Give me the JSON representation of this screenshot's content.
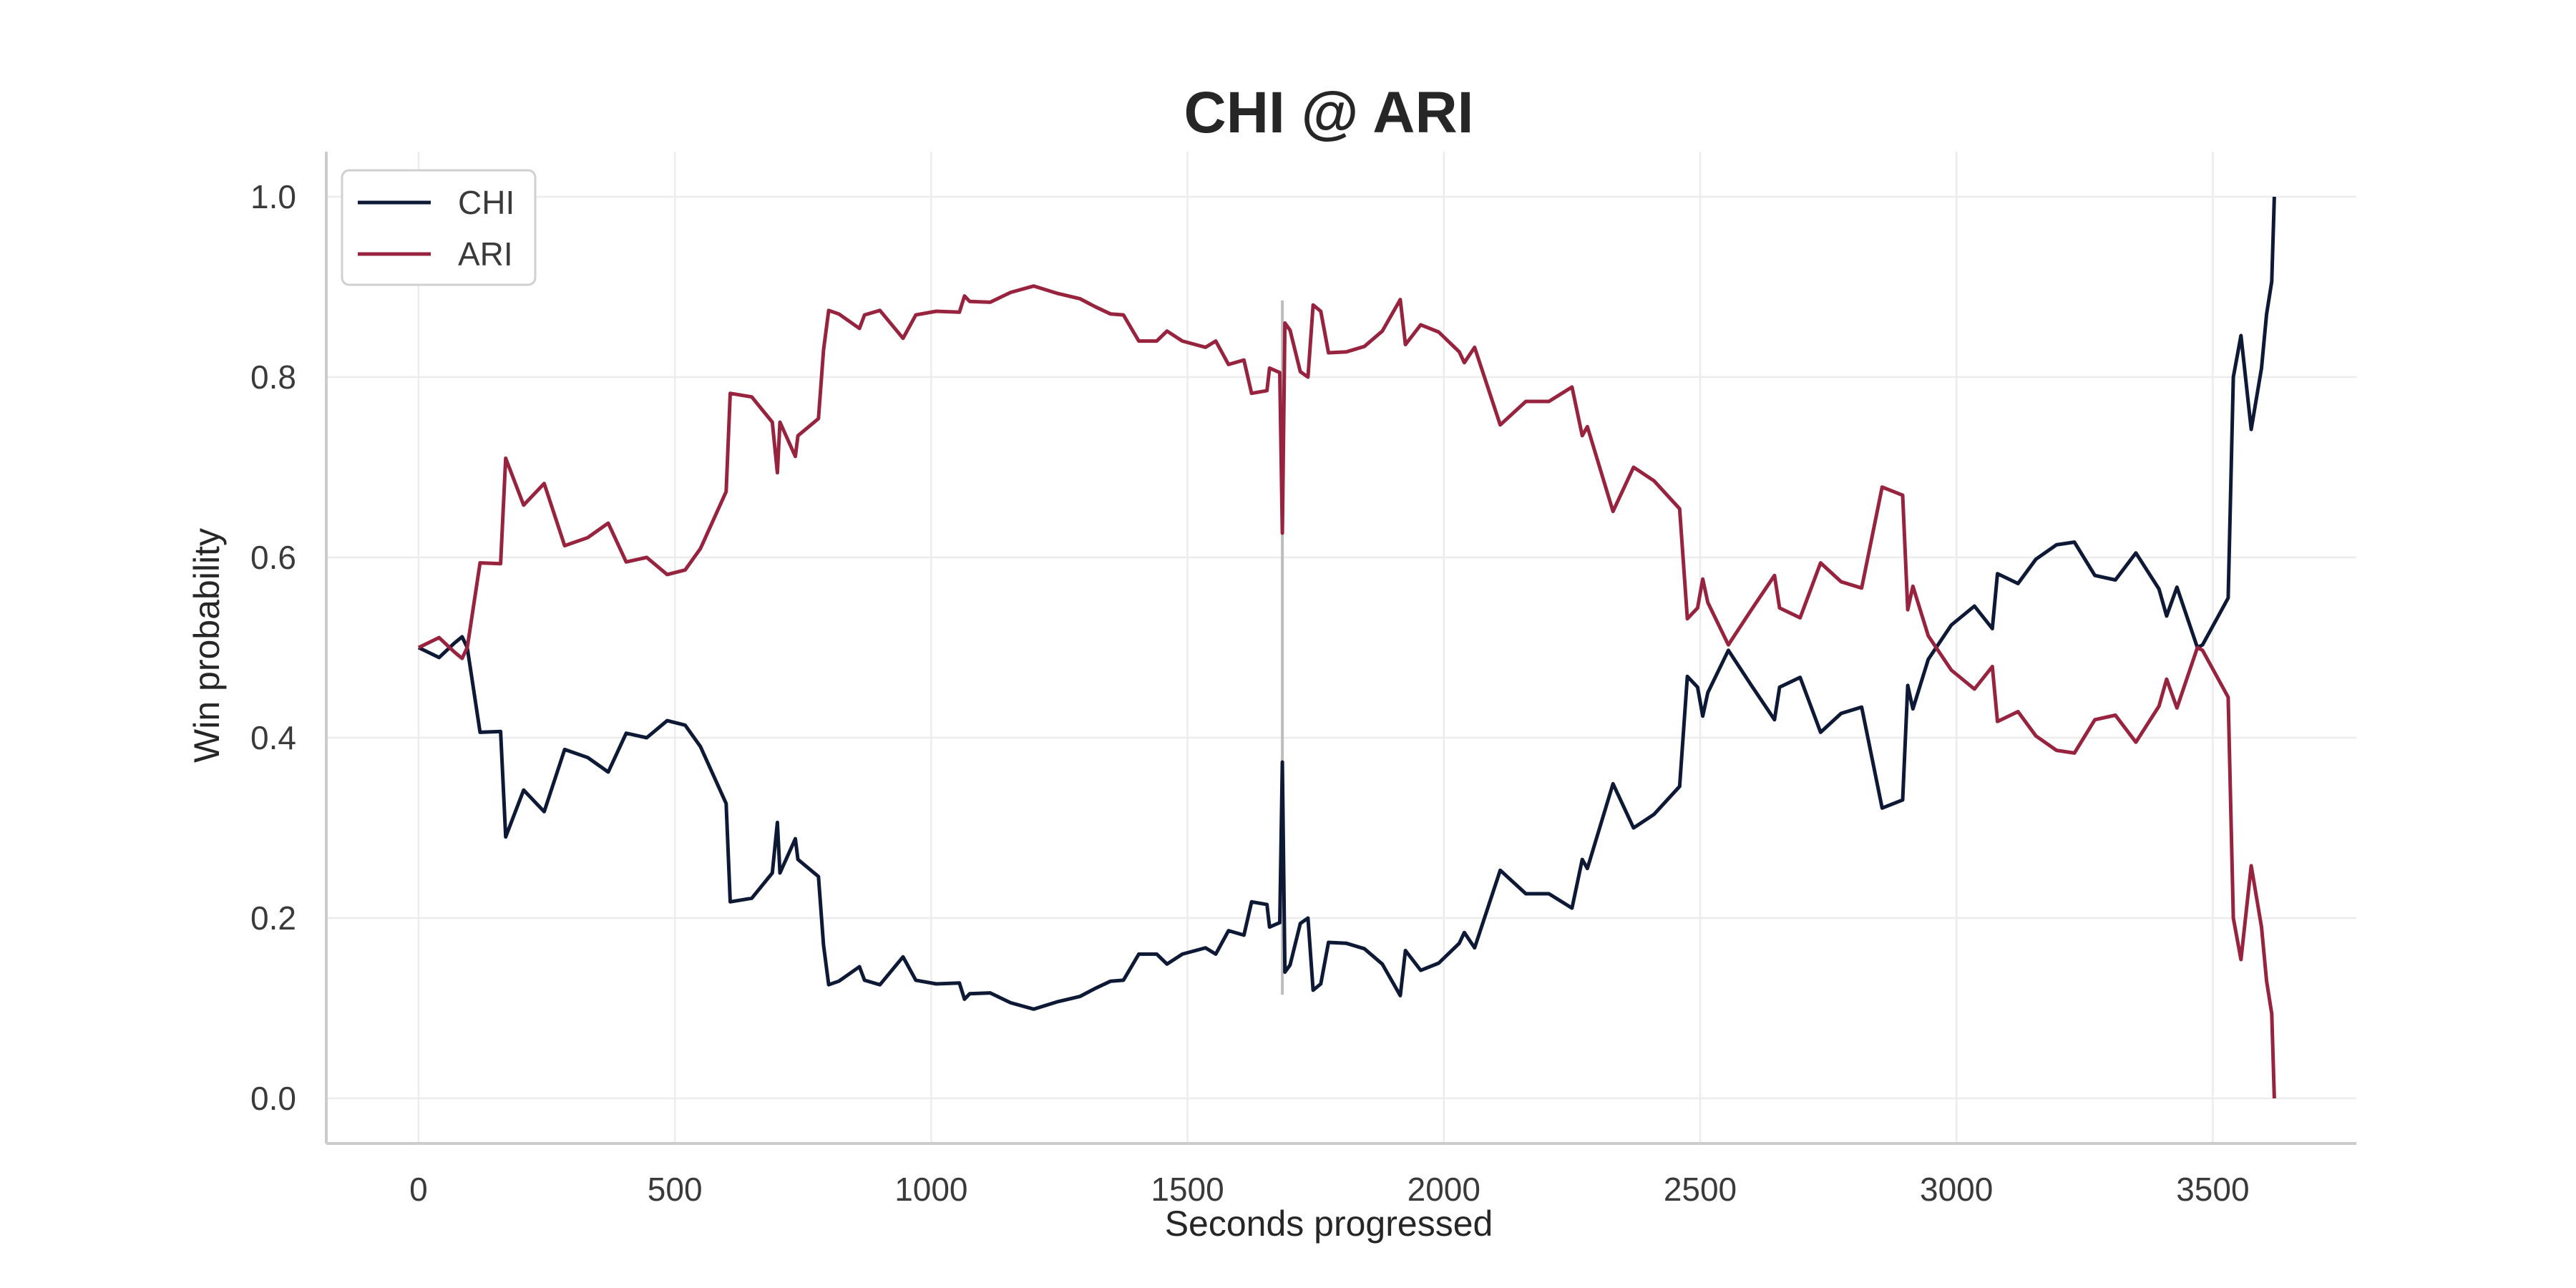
{
  "chart_data": {
    "type": "line",
    "title": "CHI @ ARI",
    "xlabel": "Seconds progressed",
    "ylabel": "Win probability",
    "xlim": [
      -180,
      3780
    ],
    "ylim": [
      -0.05,
      1.05
    ],
    "x_ticks": [
      0,
      500,
      1000,
      1500,
      2000,
      2500,
      3000,
      3500
    ],
    "x_tick_labels": [
      "0",
      "500",
      "1000",
      "1500",
      "2000",
      "2500",
      "3000",
      "3500"
    ],
    "y_ticks": [
      0.0,
      0.2,
      0.4,
      0.6,
      0.8,
      1.0
    ],
    "y_tick_labels": [
      "0.0",
      "0.2",
      "0.4",
      "0.6",
      "0.8",
      "1.0"
    ],
    "grid": true,
    "legend_position": "top-left",
    "marker_x": 1685,
    "marker_range": [
      0.115,
      0.885
    ],
    "series": [
      {
        "name": "CHI",
        "color": "#0e1a35",
        "points": [
          [
            0,
            0.5
          ],
          [
            40,
            0.489
          ],
          [
            70,
            0.505
          ],
          [
            85,
            0.512
          ],
          [
            95,
            0.5
          ],
          [
            120,
            0.406
          ],
          [
            160,
            0.407
          ],
          [
            170,
            0.29
          ],
          [
            205,
            0.342
          ],
          [
            245,
            0.318
          ],
          [
            285,
            0.387
          ],
          [
            330,
            0.378
          ],
          [
            370,
            0.362
          ],
          [
            405,
            0.405
          ],
          [
            445,
            0.4
          ],
          [
            485,
            0.419
          ],
          [
            520,
            0.414
          ],
          [
            550,
            0.39
          ],
          [
            600,
            0.327
          ],
          [
            608,
            0.218
          ],
          [
            650,
            0.222
          ],
          [
            690,
            0.25
          ],
          [
            700,
            0.306
          ],
          [
            705,
            0.25
          ],
          [
            735,
            0.288
          ],
          [
            740,
            0.265
          ],
          [
            780,
            0.246
          ],
          [
            790,
            0.17
          ],
          [
            800,
            0.126
          ],
          [
            820,
            0.13
          ],
          [
            860,
            0.146
          ],
          [
            870,
            0.131
          ],
          [
            900,
            0.126
          ],
          [
            945,
            0.157
          ],
          [
            970,
            0.131
          ],
          [
            1010,
            0.127
          ],
          [
            1055,
            0.128
          ],
          [
            1065,
            0.11
          ],
          [
            1075,
            0.116
          ],
          [
            1115,
            0.117
          ],
          [
            1155,
            0.106
          ],
          [
            1200,
            0.099
          ],
          [
            1245,
            0.107
          ],
          [
            1290,
            0.113
          ],
          [
            1320,
            0.122
          ],
          [
            1350,
            0.13
          ],
          [
            1375,
            0.131
          ],
          [
            1405,
            0.16
          ],
          [
            1440,
            0.16
          ],
          [
            1460,
            0.149
          ],
          [
            1490,
            0.16
          ],
          [
            1535,
            0.167
          ],
          [
            1555,
            0.16
          ],
          [
            1580,
            0.186
          ],
          [
            1610,
            0.181
          ],
          [
            1625,
            0.218
          ],
          [
            1655,
            0.215
          ],
          [
            1660,
            0.19
          ],
          [
            1680,
            0.195
          ],
          [
            1685,
            0.373
          ],
          [
            1690,
            0.14
          ],
          [
            1700,
            0.148
          ],
          [
            1720,
            0.194
          ],
          [
            1735,
            0.2
          ],
          [
            1745,
            0.12
          ],
          [
            1760,
            0.127
          ],
          [
            1775,
            0.173
          ],
          [
            1810,
            0.172
          ],
          [
            1845,
            0.166
          ],
          [
            1880,
            0.149
          ],
          [
            1915,
            0.114
          ],
          [
            1925,
            0.164
          ],
          [
            1955,
            0.142
          ],
          [
            1990,
            0.15
          ],
          [
            2030,
            0.172
          ],
          [
            2040,
            0.184
          ],
          [
            2060,
            0.167
          ],
          [
            2110,
            0.253
          ],
          [
            2160,
            0.227
          ],
          [
            2205,
            0.227
          ],
          [
            2250,
            0.211
          ],
          [
            2270,
            0.265
          ],
          [
            2280,
            0.255
          ],
          [
            2330,
            0.349
          ],
          [
            2370,
            0.3
          ],
          [
            2410,
            0.315
          ],
          [
            2460,
            0.346
          ],
          [
            2475,
            0.468
          ],
          [
            2495,
            0.456
          ],
          [
            2505,
            0.424
          ],
          [
            2515,
            0.45
          ],
          [
            2555,
            0.497
          ],
          [
            2600,
            0.458
          ],
          [
            2645,
            0.42
          ],
          [
            2655,
            0.456
          ],
          [
            2695,
            0.467
          ],
          [
            2735,
            0.406
          ],
          [
            2775,
            0.427
          ],
          [
            2815,
            0.434
          ],
          [
            2855,
            0.322
          ],
          [
            2895,
            0.331
          ],
          [
            2905,
            0.458
          ],
          [
            2915,
            0.432
          ],
          [
            2945,
            0.487
          ],
          [
            2990,
            0.525
          ],
          [
            3035,
            0.546
          ],
          [
            3070,
            0.521
          ],
          [
            3080,
            0.582
          ],
          [
            3120,
            0.571
          ],
          [
            3155,
            0.598
          ],
          [
            3195,
            0.614
          ],
          [
            3230,
            0.617
          ],
          [
            3270,
            0.58
          ],
          [
            3310,
            0.575
          ],
          [
            3350,
            0.605
          ],
          [
            3395,
            0.565
          ],
          [
            3410,
            0.535
          ],
          [
            3430,
            0.567
          ],
          [
            3470,
            0.5
          ],
          [
            3480,
            0.503
          ],
          [
            3530,
            0.555
          ],
          [
            3540,
            0.8
          ],
          [
            3555,
            0.846
          ],
          [
            3575,
            0.742
          ],
          [
            3595,
            0.81
          ],
          [
            3605,
            0.87
          ],
          [
            3615,
            0.906
          ],
          [
            3620,
            1.0
          ]
        ]
      },
      {
        "name": "ARI",
        "color": "#97233f",
        "points": [
          [
            0,
            0.5
          ],
          [
            40,
            0.511
          ],
          [
            70,
            0.495
          ],
          [
            85,
            0.488
          ],
          [
            95,
            0.5
          ],
          [
            120,
            0.594
          ],
          [
            160,
            0.593
          ],
          [
            170,
            0.71
          ],
          [
            205,
            0.658
          ],
          [
            245,
            0.682
          ],
          [
            285,
            0.613
          ],
          [
            330,
            0.622
          ],
          [
            370,
            0.638
          ],
          [
            405,
            0.595
          ],
          [
            445,
            0.6
          ],
          [
            485,
            0.581
          ],
          [
            520,
            0.586
          ],
          [
            550,
            0.61
          ],
          [
            600,
            0.673
          ],
          [
            608,
            0.782
          ],
          [
            650,
            0.778
          ],
          [
            690,
            0.75
          ],
          [
            700,
            0.694
          ],
          [
            705,
            0.75
          ],
          [
            735,
            0.712
          ],
          [
            740,
            0.735
          ],
          [
            780,
            0.754
          ],
          [
            790,
            0.83
          ],
          [
            800,
            0.874
          ],
          [
            820,
            0.87
          ],
          [
            860,
            0.854
          ],
          [
            870,
            0.869
          ],
          [
            900,
            0.874
          ],
          [
            945,
            0.843
          ],
          [
            970,
            0.869
          ],
          [
            1010,
            0.873
          ],
          [
            1055,
            0.872
          ],
          [
            1065,
            0.89
          ],
          [
            1075,
            0.884
          ],
          [
            1115,
            0.883
          ],
          [
            1155,
            0.894
          ],
          [
            1200,
            0.901
          ],
          [
            1245,
            0.893
          ],
          [
            1290,
            0.887
          ],
          [
            1320,
            0.878
          ],
          [
            1350,
            0.87
          ],
          [
            1375,
            0.869
          ],
          [
            1405,
            0.84
          ],
          [
            1440,
            0.84
          ],
          [
            1460,
            0.851
          ],
          [
            1490,
            0.84
          ],
          [
            1535,
            0.833
          ],
          [
            1555,
            0.84
          ],
          [
            1580,
            0.814
          ],
          [
            1610,
            0.819
          ],
          [
            1625,
            0.782
          ],
          [
            1655,
            0.785
          ],
          [
            1660,
            0.81
          ],
          [
            1680,
            0.805
          ],
          [
            1685,
            0.627
          ],
          [
            1690,
            0.86
          ],
          [
            1700,
            0.852
          ],
          [
            1720,
            0.806
          ],
          [
            1735,
            0.8
          ],
          [
            1745,
            0.88
          ],
          [
            1760,
            0.873
          ],
          [
            1775,
            0.827
          ],
          [
            1810,
            0.828
          ],
          [
            1845,
            0.834
          ],
          [
            1880,
            0.851
          ],
          [
            1915,
            0.886
          ],
          [
            1925,
            0.836
          ],
          [
            1955,
            0.858
          ],
          [
            1990,
            0.85
          ],
          [
            2030,
            0.828
          ],
          [
            2040,
            0.816
          ],
          [
            2060,
            0.833
          ],
          [
            2110,
            0.747
          ],
          [
            2160,
            0.773
          ],
          [
            2205,
            0.773
          ],
          [
            2250,
            0.789
          ],
          [
            2270,
            0.735
          ],
          [
            2280,
            0.745
          ],
          [
            2330,
            0.651
          ],
          [
            2370,
            0.7
          ],
          [
            2410,
            0.685
          ],
          [
            2460,
            0.654
          ],
          [
            2475,
            0.532
          ],
          [
            2495,
            0.544
          ],
          [
            2505,
            0.576
          ],
          [
            2515,
            0.55
          ],
          [
            2555,
            0.503
          ],
          [
            2600,
            0.542
          ],
          [
            2645,
            0.58
          ],
          [
            2655,
            0.544
          ],
          [
            2695,
            0.533
          ],
          [
            2735,
            0.594
          ],
          [
            2775,
            0.573
          ],
          [
            2815,
            0.566
          ],
          [
            2855,
            0.678
          ],
          [
            2895,
            0.669
          ],
          [
            2905,
            0.542
          ],
          [
            2915,
            0.568
          ],
          [
            2945,
            0.513
          ],
          [
            2990,
            0.475
          ],
          [
            3035,
            0.454
          ],
          [
            3070,
            0.479
          ],
          [
            3080,
            0.418
          ],
          [
            3120,
            0.429
          ],
          [
            3155,
            0.402
          ],
          [
            3195,
            0.386
          ],
          [
            3230,
            0.383
          ],
          [
            3270,
            0.42
          ],
          [
            3310,
            0.425
          ],
          [
            3350,
            0.395
          ],
          [
            3395,
            0.435
          ],
          [
            3410,
            0.465
          ],
          [
            3430,
            0.433
          ],
          [
            3470,
            0.5
          ],
          [
            3480,
            0.497
          ],
          [
            3530,
            0.445
          ],
          [
            3540,
            0.2
          ],
          [
            3555,
            0.154
          ],
          [
            3575,
            0.258
          ],
          [
            3595,
            0.19
          ],
          [
            3605,
            0.13
          ],
          [
            3615,
            0.094
          ],
          [
            3620,
            0.0
          ]
        ]
      }
    ]
  }
}
